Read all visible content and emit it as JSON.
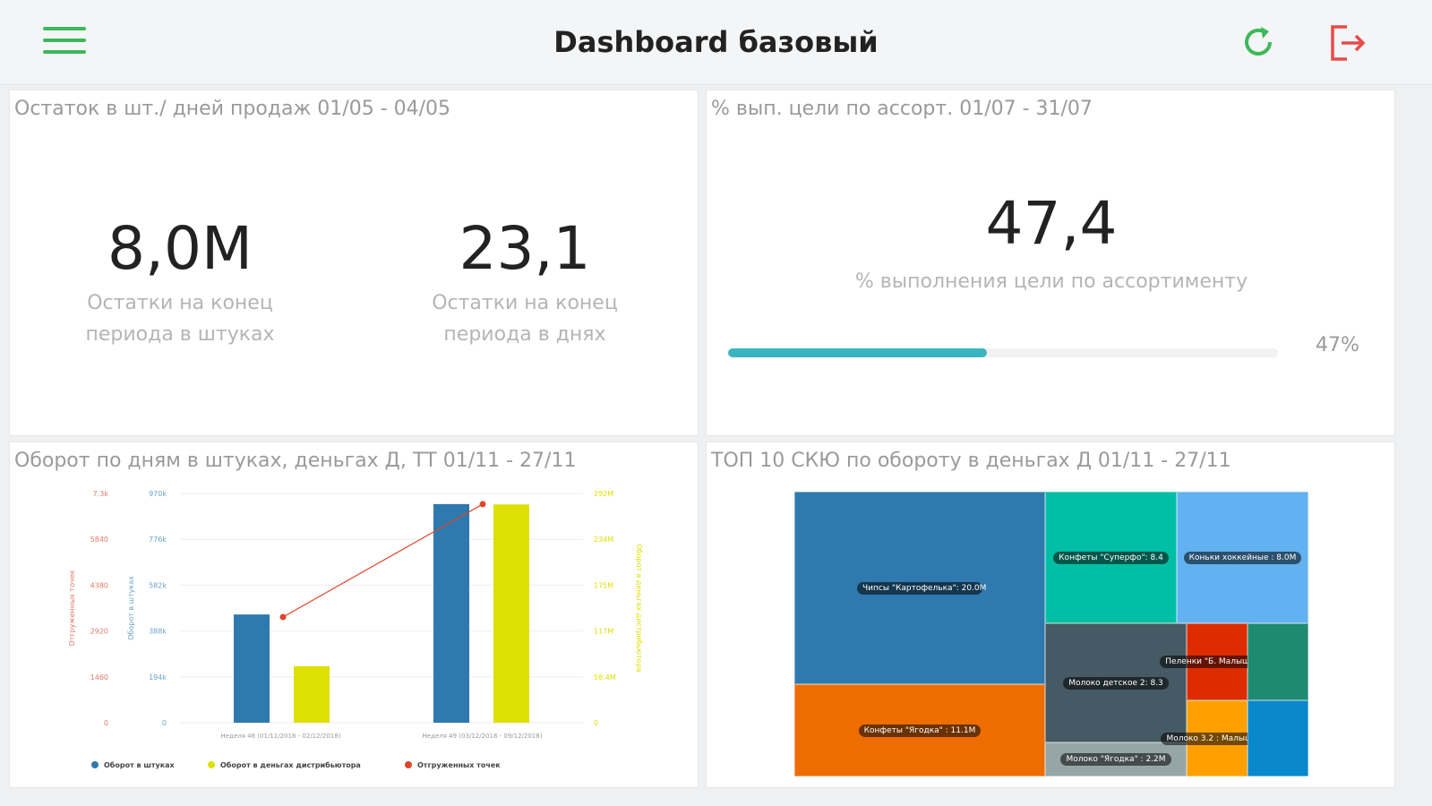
{
  "header": {
    "title": "Dashboard базовый"
  },
  "panels": {
    "stock": {
      "title": "Остаток в шт./ дней продаж 01/05 - 04/05",
      "kpis": [
        {
          "value": "8,0M",
          "label": "Остатки на конец периода в штуках"
        },
        {
          "value": "23,1",
          "label": "Остатки на конец периода в днях"
        }
      ]
    },
    "goal": {
      "title": "% вып. цели по ассорт. 01/07 - 31/07",
      "value": "47,4",
      "label": "% выполнения цели по ассортименту",
      "progress_percent": 47,
      "progress_label": "47%"
    },
    "turnover": {
      "title": "Оборот по дням в штуках, деньгах Д, ТТ 01/11 - 27/11"
    },
    "top10": {
      "title": "ТОП 10 СКЮ по обороту в деньгах Д 01/11 - 27/11"
    }
  },
  "chart_data": {
    "type": "bar",
    "categories": [
      "Неделя 48 (01/11/2018 - 02/12/2018)",
      "Неделя 49 (03/12/2018 - 09/12/2018)"
    ],
    "series": [
      {
        "name": "Оборот в штуках",
        "type": "bar",
        "axis": "left-inner",
        "color": "#2e79ad",
        "values": [
          458000,
          925000
        ]
      },
      {
        "name": "Оборот в деньгах дистрибьютора",
        "type": "bar",
        "axis": "right",
        "color": "#dde000",
        "values": [
          72000000,
          278000000
        ]
      },
      {
        "name": "Отгруженных точек",
        "type": "line",
        "axis": "left-outer",
        "color": "#e0452c",
        "values": [
          3365,
          6960
        ]
      }
    ],
    "axes": {
      "left_outer": {
        "label": "Отгруженных точек",
        "ticks": [
          "0",
          "1460",
          "2920",
          "4380",
          "5840",
          "7.3k"
        ],
        "max": 7300,
        "color": "#e07a68"
      },
      "left_inner": {
        "label": "Оборот в штуках",
        "ticks": [
          "0",
          "194k",
          "388k",
          "582k",
          "776k",
          "970k"
        ],
        "max": 970000,
        "color": "#6aa5c8"
      },
      "right": {
        "label": "Оборот в деньгах дистрибьютора",
        "ticks": [
          "0",
          "58.4M",
          "117M",
          "175M",
          "234M",
          "292M"
        ],
        "max": 292000000,
        "color": "#dde000"
      }
    },
    "legend_placement": "bottom"
  },
  "treemap": [
    {
      "label": "Чипсы \"Картофелька\": 20.0M",
      "color": "#2e79ad"
    },
    {
      "label": "Конфеты \"Суперфо\": 8.4",
      "color": "#00bfa5"
    },
    {
      "label": "Коньки хоккейные : 8.0M",
      "color": "#62b1f1"
    },
    {
      "label": "Конфеты \"Ягодка\" : 11.1M",
      "color": "#ed6d00"
    },
    {
      "label": "Молоко детское 2: 8.3",
      "color": "#455a64"
    },
    {
      "label": "Молоко \"Ягодка\" : 2.2M",
      "color": "#96a6a6"
    },
    {
      "label": "Пеленки \"Б. Малыш\" : ...",
      "color": "#dd2c00"
    },
    {
      "label": "",
      "color": "#1e8a70"
    },
    {
      "label": "Молоко 3.2 : Малыш : ...",
      "color": "#ffa000"
    },
    {
      "label": "",
      "color": "#0a88cc"
    }
  ]
}
